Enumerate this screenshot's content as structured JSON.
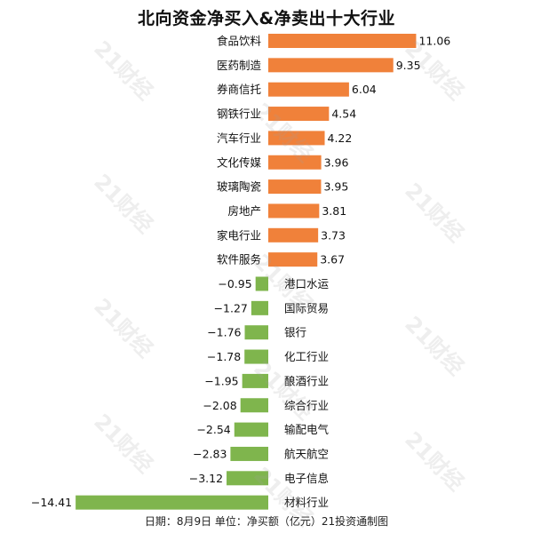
{
  "chart_data": {
    "type": "bar",
    "orientation": "horizontal",
    "title": "北向资金净买入&净卖出十大行业",
    "footer": "日期：8月9日 单位：净买额（亿元）21投资通制图",
    "watermark": "21财经",
    "colors": {
      "positive": "#f0813a",
      "negative": "#7fb54d",
      "label": "#111111"
    },
    "categories": [
      "食品饮料",
      "医药制造",
      "券商信托",
      "钢铁行业",
      "汽车行业",
      "文化传媒",
      "玻璃陶瓷",
      "房地产",
      "家电行业",
      "软件服务",
      "港口水运",
      "国际贸易",
      "银行",
      "化工行业",
      "酿酒行业",
      "综合行业",
      "输配电气",
      "航天航空",
      "电子信息",
      "材料行业"
    ],
    "values": [
      11.06,
      9.35,
      6.04,
      4.54,
      4.22,
      3.96,
      3.95,
      3.81,
      3.73,
      3.67,
      -0.95,
      -1.27,
      -1.76,
      -1.78,
      -1.95,
      -2.08,
      -2.54,
      -2.83,
      -3.12,
      -14.41
    ],
    "value_labels": [
      "11.06",
      "9.35",
      "6.04",
      "4.54",
      "4.22",
      "3.96",
      "3.95",
      "3.81",
      "3.73",
      "3.67",
      "−0.95",
      "−1.27",
      "−1.76",
      "−1.78",
      "−1.95",
      "−2.08",
      "−2.54",
      "−2.83",
      "−3.12",
      "−14.41"
    ],
    "xlim": [
      -14.41,
      11.06
    ],
    "grid": false,
    "legend": "none"
  }
}
